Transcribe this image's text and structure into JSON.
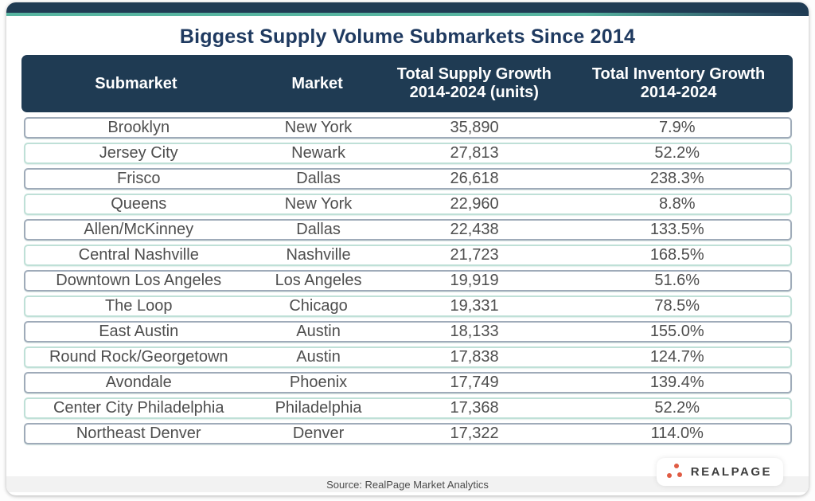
{
  "title": "Biggest Supply Volume Submarkets Since 2014",
  "table": {
    "headers": {
      "submarket": "Submarket",
      "market": "Market",
      "supply_line1": "Total Supply Growth",
      "supply_line2": "2014-2024 (units)",
      "inventory_line1": "Total Inventory Growth",
      "inventory_line2": "2014-2024"
    },
    "rows": [
      {
        "submarket": "Brooklyn",
        "market": "New York",
        "supply_growth": "35,890",
        "inventory_growth": "7.9%"
      },
      {
        "submarket": "Jersey City",
        "market": "Newark",
        "supply_growth": "27,813",
        "inventory_growth": "52.2%"
      },
      {
        "submarket": "Frisco",
        "market": "Dallas",
        "supply_growth": "26,618",
        "inventory_growth": "238.3%"
      },
      {
        "submarket": "Queens",
        "market": "New York",
        "supply_growth": "22,960",
        "inventory_growth": "8.8%"
      },
      {
        "submarket": "Allen/McKinney",
        "market": "Dallas",
        "supply_growth": "22,438",
        "inventory_growth": "133.5%"
      },
      {
        "submarket": "Central Nashville",
        "market": "Nashville",
        "supply_growth": "21,723",
        "inventory_growth": "168.5%"
      },
      {
        "submarket": "Downtown Los Angeles",
        "market": "Los Angeles",
        "supply_growth": "19,919",
        "inventory_growth": "51.6%"
      },
      {
        "submarket": "The Loop",
        "market": "Chicago",
        "supply_growth": "19,331",
        "inventory_growth": "78.5%"
      },
      {
        "submarket": "East Austin",
        "market": "Austin",
        "supply_growth": "18,133",
        "inventory_growth": "155.0%"
      },
      {
        "submarket": "Round Rock/Georgetown",
        "market": "Austin",
        "supply_growth": "17,838",
        "inventory_growth": "124.7%"
      },
      {
        "submarket": "Avondale",
        "market": "Phoenix",
        "supply_growth": "17,749",
        "inventory_growth": "139.4%"
      },
      {
        "submarket": "Center City Philadelphia",
        "market": "Philadelphia",
        "supply_growth": "17,368",
        "inventory_growth": "52.2%"
      },
      {
        "submarket": "Northeast Denver",
        "market": "Denver",
        "supply_growth": "17,322",
        "inventory_growth": "114.0%"
      }
    ]
  },
  "footer": {
    "source": "Source: RealPage Market Analytics",
    "logo_text": "REALPAGE"
  },
  "colors": {
    "navy": "#1f3b53",
    "title_navy": "#1f3a60",
    "teal_accent": "#57b4a0",
    "row_border_gray": "#9fabb9",
    "row_border_mint": "#bfe0d7",
    "logo_orange": "#e05c44"
  },
  "chart_data": {
    "type": "table",
    "title": "Biggest Supply Volume Submarkets Since 2014",
    "columns": [
      "Submarket",
      "Market",
      "Total Supply Growth 2014-2024 (units)",
      "Total Inventory Growth 2014-2024"
    ],
    "rows": [
      [
        "Brooklyn",
        "New York",
        "35,890",
        "7.9%"
      ],
      [
        "Jersey City",
        "Newark",
        "27,813",
        "52.2%"
      ],
      [
        "Frisco",
        "Dallas",
        "26,618",
        "238.3%"
      ],
      [
        "Queens",
        "New York",
        "22,960",
        "8.8%"
      ],
      [
        "Allen/McKinney",
        "Dallas",
        "22,438",
        "133.5%"
      ],
      [
        "Central Nashville",
        "Nashville",
        "21,723",
        "168.5%"
      ],
      [
        "Downtown Los Angeles",
        "Los Angeles",
        "19,919",
        "51.6%"
      ],
      [
        "The Loop",
        "Chicago",
        "19,331",
        "78.5%"
      ],
      [
        "East Austin",
        "Austin",
        "18,133",
        "155.0%"
      ],
      [
        "Round Rock/Georgetown",
        "Austin",
        "17,838",
        "124.7%"
      ],
      [
        "Avondale",
        "Phoenix",
        "17,749",
        "139.4%"
      ],
      [
        "Center City Philadelphia",
        "Philadelphia",
        "17,368",
        "52.2%"
      ],
      [
        "Northeast Denver",
        "Denver",
        "17,322",
        "114.0%"
      ]
    ],
    "supply_growth_units": [
      35890,
      27813,
      26618,
      22960,
      22438,
      21723,
      19919,
      19331,
      18133,
      17838,
      17749,
      17368,
      17322
    ],
    "inventory_growth_pct": [
      7.9,
      52.2,
      238.3,
      8.8,
      133.5,
      168.5,
      51.6,
      78.5,
      155.0,
      124.7,
      139.4,
      52.2,
      114.0
    ],
    "source": "Source: RealPage Market Analytics"
  }
}
